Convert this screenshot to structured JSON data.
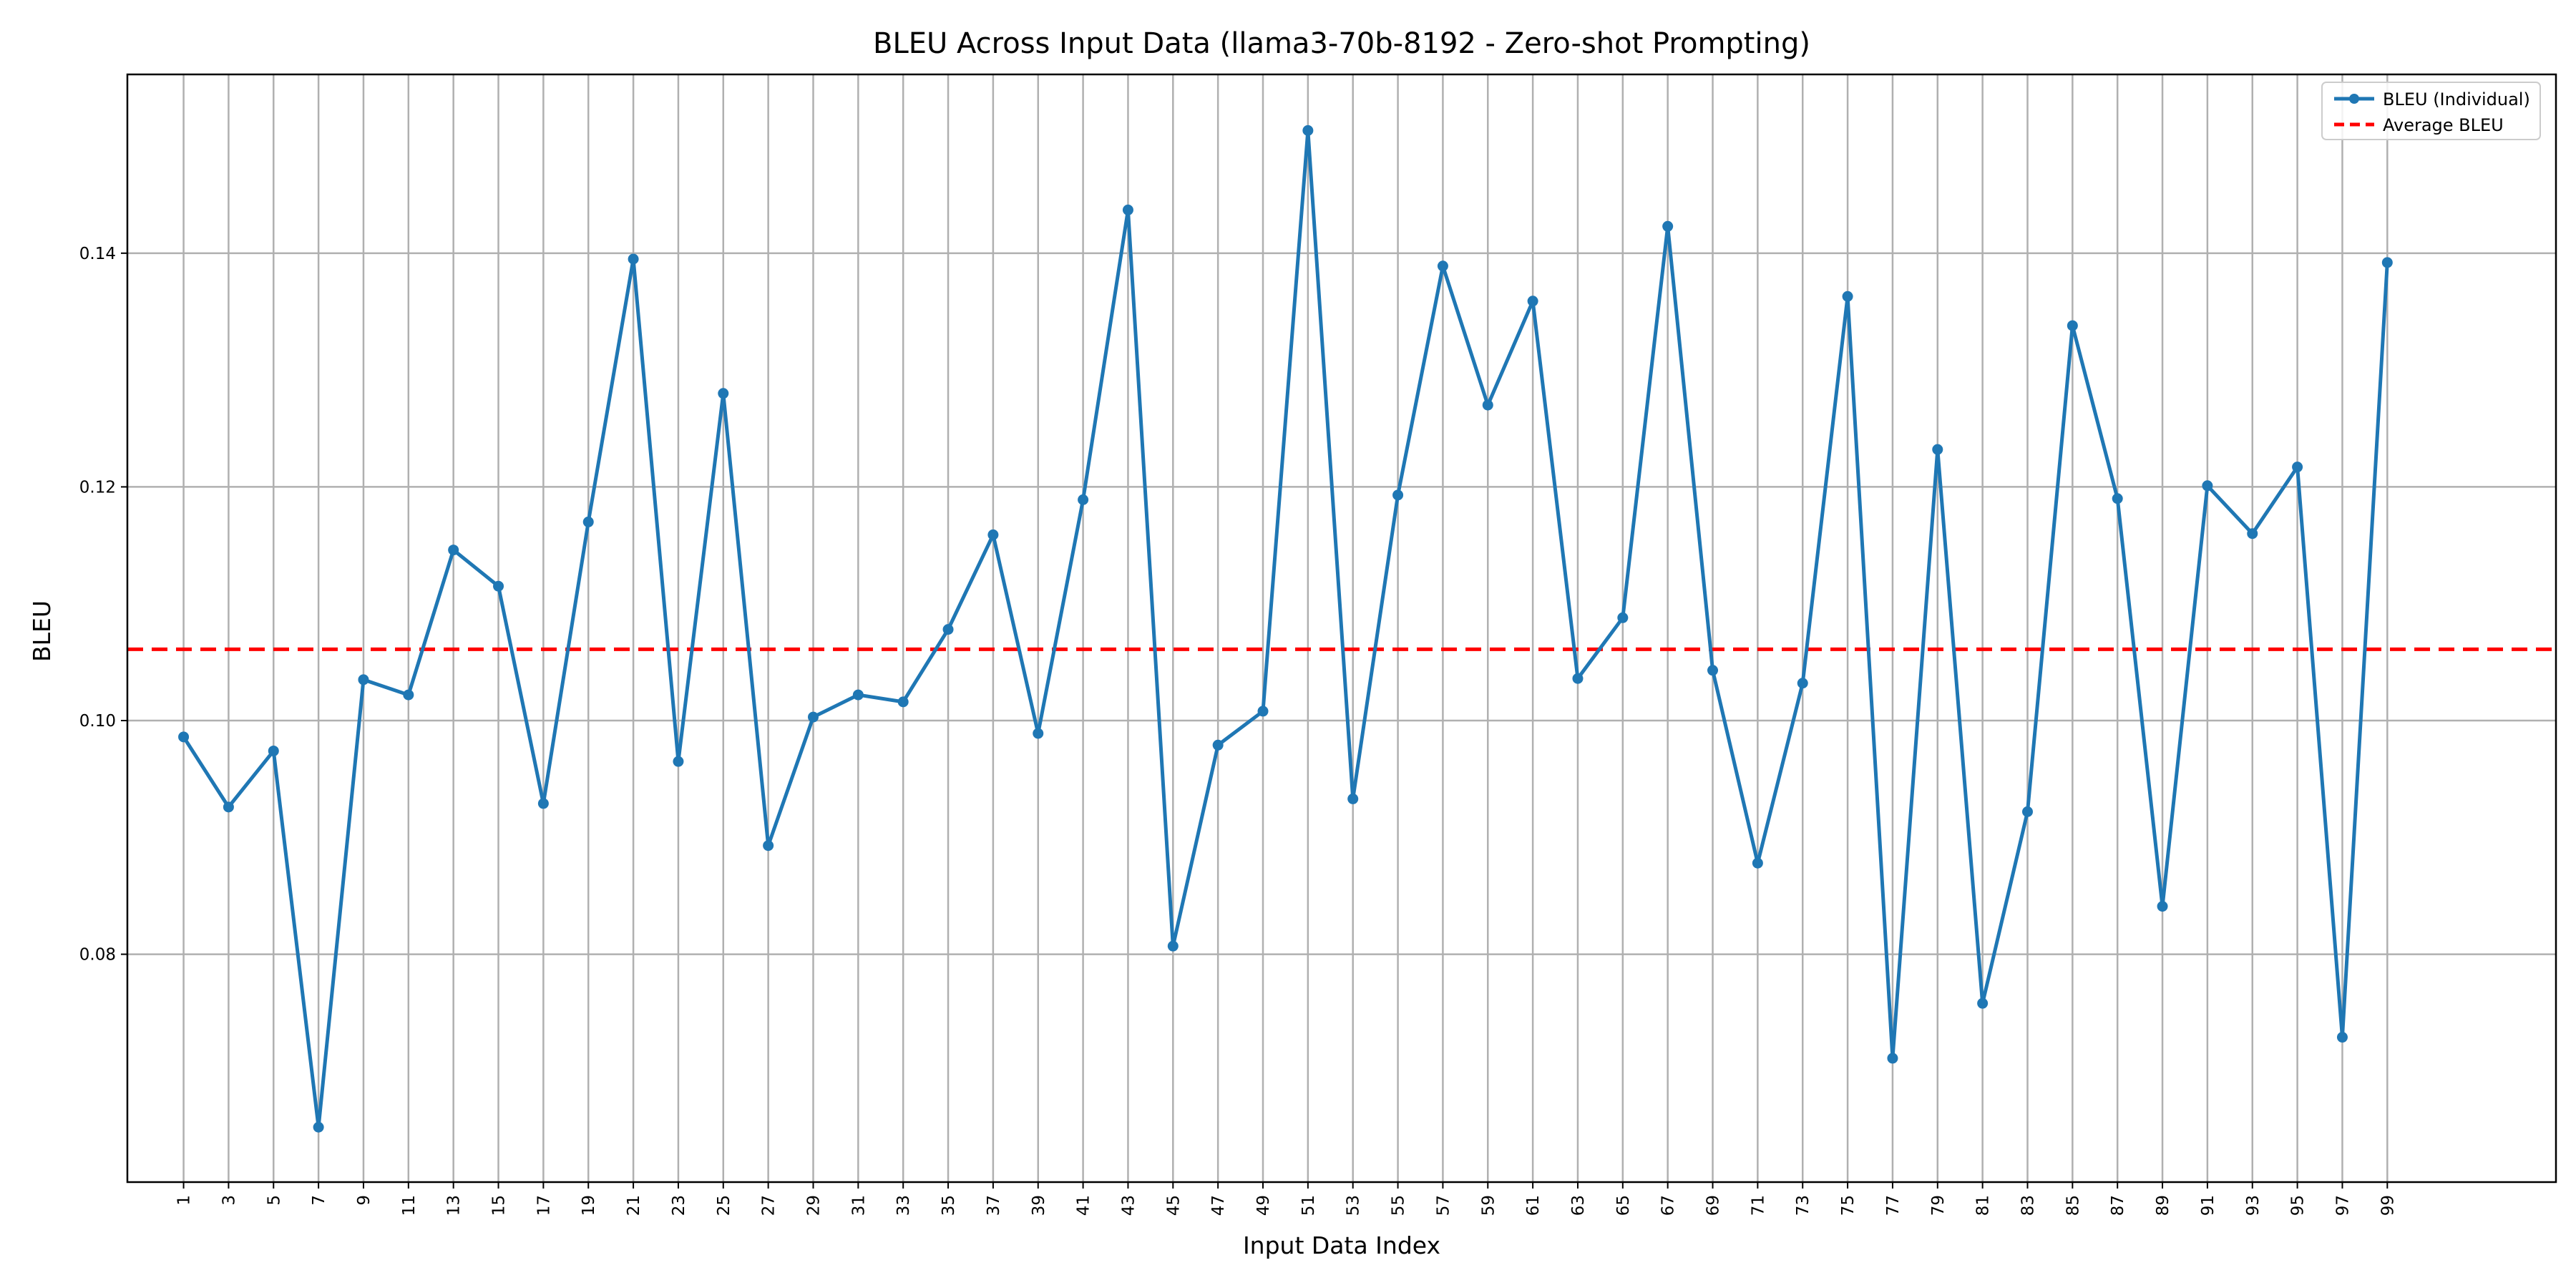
{
  "chart_data": {
    "type": "line",
    "title": "BLEU Across Input Data (llama3-70b-8192 - Zero-shot Prompting)",
    "xlabel": "Input Data Index",
    "ylabel": "BLEU",
    "xlim": [
      -1.5,
      106.5
    ],
    "ylim": [
      0.0605,
      0.1553
    ],
    "x_ticks": [
      "1",
      "3",
      "5",
      "7",
      "9",
      "11",
      "13",
      "15",
      "17",
      "19",
      "21",
      "23",
      "25",
      "27",
      "29",
      "31",
      "33",
      "35",
      "37",
      "39",
      "41",
      "43",
      "45",
      "47",
      "49",
      "51",
      "53",
      "55",
      "57",
      "59",
      "61",
      "63",
      "65",
      "67",
      "69",
      "71",
      "73",
      "75",
      "77",
      "79",
      "81",
      "83",
      "85",
      "87",
      "89",
      "91",
      "93",
      "95",
      "97",
      "99"
    ],
    "y_ticks": [
      "0.08",
      "0.10",
      "0.12",
      "0.14"
    ],
    "y_tick_values": [
      0.08,
      0.1,
      0.12,
      0.14
    ],
    "grid": true,
    "legend_position": "top-right",
    "series": [
      {
        "name": "BLEU (Individual)",
        "color": "#1f77b4",
        "style": "solid-with-markers",
        "x": [
          1,
          3,
          5,
          7,
          9,
          11,
          13,
          15,
          17,
          19,
          21,
          23,
          25,
          27,
          29,
          31,
          33,
          35,
          37,
          39,
          41,
          43,
          45,
          47,
          49,
          51,
          53,
          55,
          57,
          59,
          61,
          63,
          65,
          67,
          69,
          71,
          73,
          75,
          77,
          79,
          81,
          83,
          85,
          87,
          89,
          91,
          93,
          95,
          97,
          99
        ],
        "values": [
          0.0986,
          0.0926,
          0.0974,
          0.0652,
          0.1035,
          0.1022,
          0.1146,
          0.1115,
          0.0929,
          0.117,
          0.1395,
          0.0965,
          0.128,
          0.0893,
          0.1003,
          0.1022,
          0.1016,
          0.1078,
          0.1159,
          0.0989,
          0.1189,
          0.1437,
          0.0807,
          0.0979,
          0.1008,
          0.1505,
          0.0933,
          0.1193,
          0.1389,
          0.127,
          0.1359,
          0.1036,
          0.1088,
          0.1423,
          0.1043,
          0.0878,
          0.1032,
          0.1363,
          0.0711,
          0.1232,
          0.0758,
          0.0922,
          0.1338,
          0.119,
          0.0841,
          0.1201,
          0.116,
          0.1217,
          0.0729,
          0.1392
        ]
      },
      {
        "name": "Average BLEU",
        "color": "#ff0000",
        "style": "dashed",
        "value": 0.1061
      }
    ]
  }
}
